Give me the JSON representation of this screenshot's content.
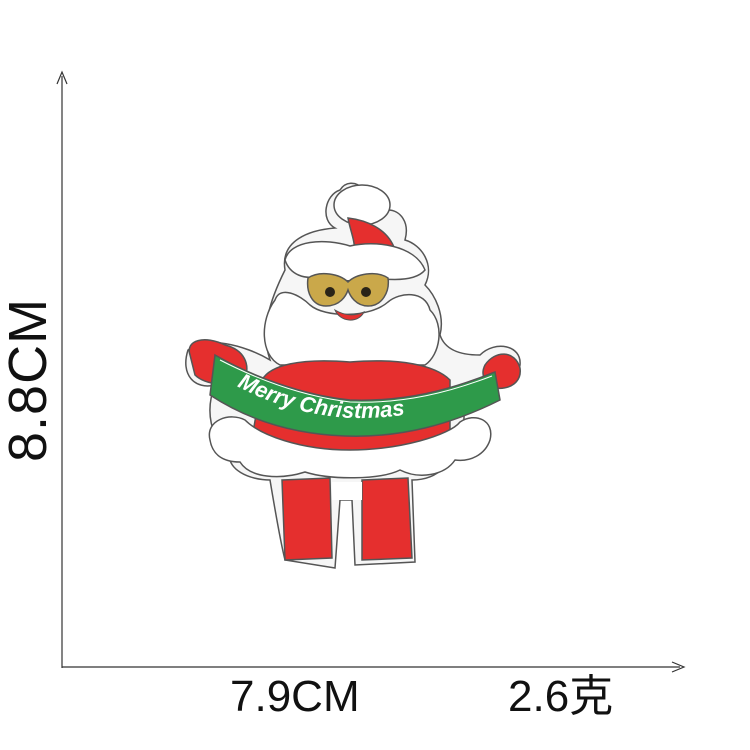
{
  "product": {
    "banner_text": "Merry Christmas",
    "colors": {
      "red": "#e52f2e",
      "dark_red": "#c8201e",
      "green": "#2e9a4a",
      "white": "#ffffff",
      "felt_backing": "#f6f6f6",
      "outline": "#4a4a4a",
      "glasses_gold": "#caa84a",
      "eyes": "#2a2418"
    }
  },
  "dimensions": {
    "height": "8.8CM",
    "width": "7.9CM",
    "weight": "2.6克"
  }
}
